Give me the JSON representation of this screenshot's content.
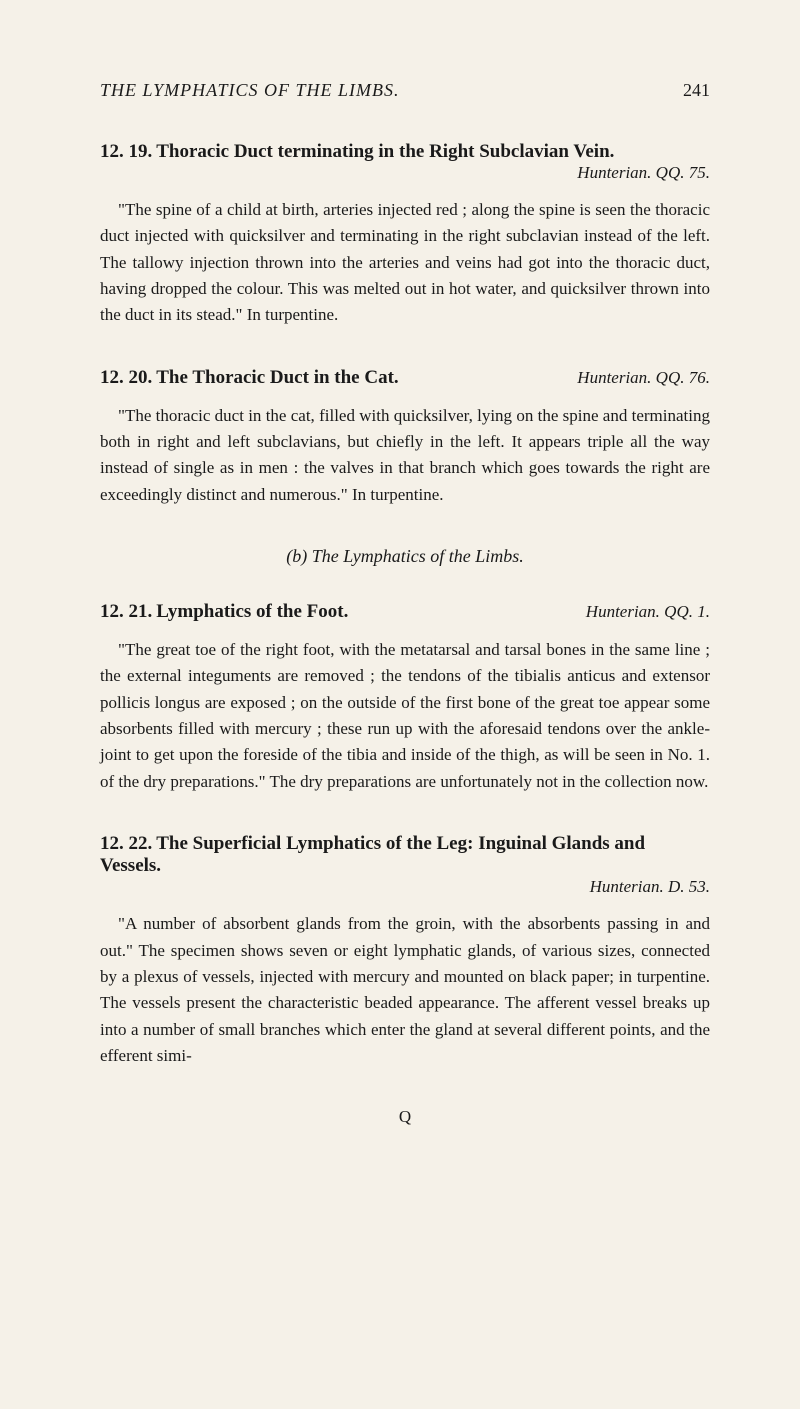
{
  "header": {
    "title": "THE LYMPHATICS OF THE LIMBS.",
    "page": "241"
  },
  "sectionB": "(b) The Lymphatics of the Limbs.",
  "bottomMark": "Q",
  "entries": [
    {
      "number": "12. 19.",
      "title": "Thoracic Duct terminating in the Right Subclavian Vein.",
      "source": "Hunterian. QQ. 75.",
      "body": "\"The spine of a child at birth, arteries injected red ; along the spine is seen the thoracic duct injected with quicksilver and terminating in the right subclavian instead of the left. The tallowy injection thrown into the arteries and veins had got into the thoracic duct, having dropped the colour. This was melted out in hot water, and quicksilver thrown into the duct in its stead.\" In turpentine."
    },
    {
      "number": "12. 20.",
      "title": "The Thoracic Duct in the Cat.",
      "source": "Hunterian. QQ. 76.",
      "body": "\"The thoracic duct in the cat, filled with quicksilver, lying on the spine and terminating both in right and left subclavians, but chiefly in the left. It appears triple all the way instead of single as in men : the valves in that branch which goes towards the right are exceedingly distinct and numerous.\" In turpentine."
    },
    {
      "number": "12. 21.",
      "title": "Lymphatics of the Foot.",
      "source": "Hunterian. QQ. 1.",
      "body": "\"The great toe of the right foot, with the metatarsal and tarsal bones in the same line ; the external integuments are removed ; the tendons of the tibialis anticus and extensor pollicis longus are exposed ; on the outside of the first bone of the great toe appear some absorbents filled with mercury ; these run up with the aforesaid tendons over the ankle-joint to get upon the foreside of the tibia and inside of the thigh, as will be seen in No. 1. of the dry preparations.\" The dry preparations are unfortunately not in the collection now."
    },
    {
      "number": "12. 22.",
      "title": "The Superficial Lymphatics of the Leg: Inguinal Glands and Vessels.",
      "source": "Hunterian. D. 53.",
      "body": "\"A number of absorbent glands from the groin, with the absorbents passing in and out.\" The specimen shows seven or eight lymphatic glands, of various sizes, connected by a plexus of vessels, injected with mercury and mounted on black paper; in turpentine. The vessels present the characteristic beaded appearance. The afferent vessel breaks up into a number of small branches which enter the gland at several different points, and the efferent simi-"
    }
  ]
}
